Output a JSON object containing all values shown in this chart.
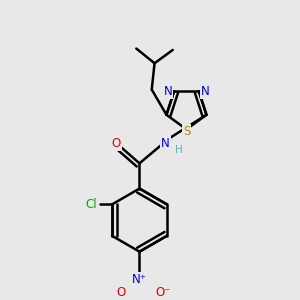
{
  "bg_color": "#e8e8e8",
  "bond_color": "#000000",
  "bond_width": 1.8,
  "atom_colors": {
    "C": "#000000",
    "H": "#6ab0b0",
    "N": "#0000dd",
    "O": "#dd0000",
    "S": "#b8860b",
    "Cl": "#00aa00"
  },
  "font_size": 8.5,
  "title": ""
}
